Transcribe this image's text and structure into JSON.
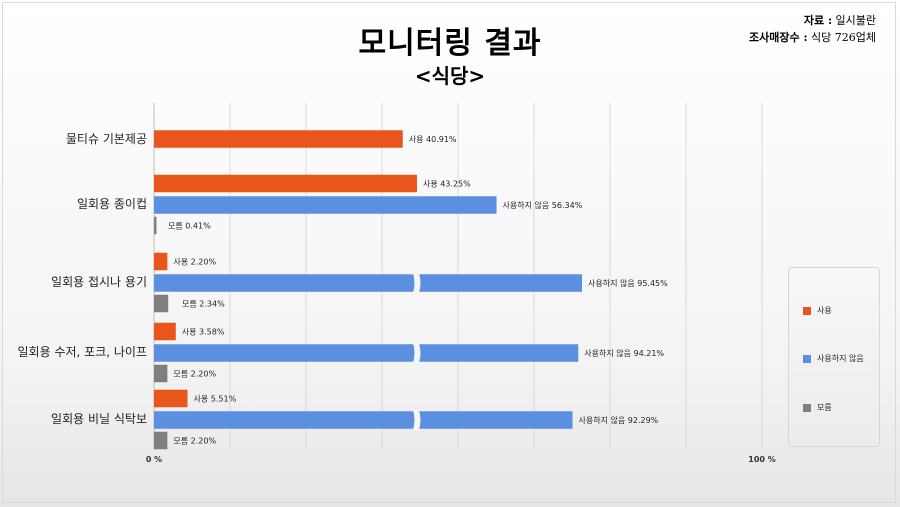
{
  "header": {
    "title": "모니터링 결과",
    "subtitle": "<식당>",
    "source_key": "자료 :",
    "source_value": "일시불란",
    "survey_key": "조사매장수 :",
    "survey_value": "식당 726업체"
  },
  "colors": {
    "used": "#E8561C",
    "not_used": "#5B8FE0",
    "unknown": "#7F7F7F",
    "grid": "#d9d9d9"
  },
  "chart_data": {
    "type": "bar",
    "orientation": "horizontal",
    "title": "모니터링 결과",
    "subtitle": "<식당>",
    "xlim": [
      0,
      100
    ],
    "tick_labels": [
      "0 %",
      "100 %"
    ],
    "grid": true,
    "legend": "right",
    "legend_entries": [
      "사용",
      "사용하지 않음",
      "모름"
    ],
    "categories": [
      {
        "name": "물티슈 기본제공",
        "bars": [
          {
            "series": "사용",
            "value": 40.91,
            "label": "사용 40.91%",
            "broken": false
          }
        ]
      },
      {
        "name": "일회용 종이컵",
        "bars": [
          {
            "series": "사용",
            "value": 43.25,
            "label": "사용 43.25%",
            "broken": false
          },
          {
            "series": "사용하지 않음",
            "value": 56.34,
            "label": "사용하지 않음 56.34%",
            "broken": false
          },
          {
            "series": "모름",
            "value": 0.41,
            "label": "모름 0.41%",
            "broken": false
          }
        ]
      },
      {
        "name": "일회용 접시나 용기",
        "bars": [
          {
            "series": "사용",
            "value": 2.2,
            "label": "사용 2.20%",
            "broken": false
          },
          {
            "series": "사용하지 않음",
            "value": 95.45,
            "label": "사용하지 않음 95.45%",
            "broken": true
          },
          {
            "series": "모름",
            "value": 2.34,
            "label": "모름 2.34%",
            "broken": false
          }
        ]
      },
      {
        "name": "일회용 수저, 포크, 나이프",
        "bars": [
          {
            "series": "사용",
            "value": 3.58,
            "label": "사용 3.58%",
            "broken": false
          },
          {
            "series": "사용하지 않음",
            "value": 94.21,
            "label": "사용하지 않음 94.21%",
            "broken": true
          },
          {
            "series": "모름",
            "value": 2.2,
            "label": "모름 2.20%",
            "broken": false
          }
        ]
      },
      {
        "name": "일회용 비닐 식탁보",
        "bars": [
          {
            "series": "사용",
            "value": 5.51,
            "label": "사용 5.51%",
            "broken": false
          },
          {
            "series": "사용하지 않음",
            "value": 92.29,
            "label": "사용하지 않음 92.29%",
            "broken": true
          },
          {
            "series": "모름",
            "value": 2.2,
            "label": "모름 2.20%",
            "broken": false
          }
        ]
      }
    ]
  }
}
